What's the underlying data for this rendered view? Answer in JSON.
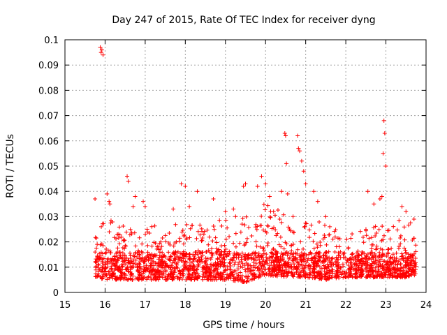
{
  "chart_data": {
    "type": "scatter",
    "title": "Day 247 of 2015, Rate Of TEC Index for receiver dyng",
    "xlabel": "GPS time / hours",
    "ylabel": "ROTI / TECUs",
    "xlim": [
      15,
      24
    ],
    "ylim": [
      0,
      0.1
    ],
    "xticks": [
      15,
      16,
      17,
      18,
      19,
      20,
      21,
      22,
      23,
      24
    ],
    "xtick_labels": [
      "15",
      "16",
      "17",
      "18",
      "19",
      "20",
      "21",
      "22",
      "23",
      "24"
    ],
    "yticks": [
      0,
      0.01,
      0.02,
      0.03,
      0.04,
      0.05,
      0.06,
      0.07,
      0.08,
      0.09,
      0.1
    ],
    "ytick_labels": [
      "0",
      "0.01",
      "0.02",
      "0.03",
      "0.04",
      "0.05",
      "0.06",
      "0.07",
      "0.08",
      "0.09",
      "0.1"
    ],
    "grid": true,
    "marker": "plus",
    "color": "#ff0000",
    "series": [
      {
        "name": "ROTI",
        "x": [
          15.75,
          15.88,
          15.9,
          15.92,
          15.95,
          16.05,
          16.1,
          16.12,
          16.55,
          16.58,
          16.7,
          16.75,
          16.95,
          17.0,
          17.7,
          17.9,
          18.0,
          18.1,
          18.3,
          18.7,
          19.0,
          19.2,
          19.45,
          19.5,
          19.8,
          19.9,
          20.0,
          20.1,
          20.2,
          20.4,
          20.48,
          20.5,
          20.52,
          20.55,
          20.8,
          20.82,
          20.85,
          20.9,
          20.95,
          21.0,
          21.2,
          21.3,
          21.5,
          21.6,
          22.55,
          22.7,
          22.85,
          22.9,
          22.93,
          22.95,
          22.97,
          23.0,
          23.4,
          23.5,
          23.7
        ],
        "y": [
          0.037,
          0.097,
          0.095,
          0.096,
          0.094,
          0.039,
          0.036,
          0.035,
          0.046,
          0.044,
          0.034,
          0.038,
          0.036,
          0.034,
          0.033,
          0.043,
          0.042,
          0.034,
          0.04,
          0.037,
          0.032,
          0.033,
          0.042,
          0.043,
          0.042,
          0.046,
          0.043,
          0.038,
          0.032,
          0.04,
          0.063,
          0.062,
          0.051,
          0.039,
          0.062,
          0.057,
          0.056,
          0.052,
          0.048,
          0.043,
          0.04,
          0.036,
          0.03,
          0.026,
          0.04,
          0.035,
          0.037,
          0.038,
          0.055,
          0.068,
          0.063,
          0.05,
          0.034,
          0.032,
          0.029
        ]
      }
    ],
    "dense_band": {
      "x_range": [
        15.75,
        23.75
      ],
      "envelope": [
        {
          "x": 15.75,
          "low": 0.006,
          "high": 0.022
        },
        {
          "x": 16.0,
          "low": 0.005,
          "high": 0.03
        },
        {
          "x": 16.5,
          "low": 0.005,
          "high": 0.026
        },
        {
          "x": 17.0,
          "low": 0.005,
          "high": 0.028
        },
        {
          "x": 17.5,
          "low": 0.005,
          "high": 0.026
        },
        {
          "x": 18.0,
          "low": 0.005,
          "high": 0.028
        },
        {
          "x": 18.5,
          "low": 0.005,
          "high": 0.028
        },
        {
          "x": 19.0,
          "low": 0.005,
          "high": 0.029
        },
        {
          "x": 19.5,
          "low": 0.004,
          "high": 0.033
        },
        {
          "x": 20.0,
          "low": 0.007,
          "high": 0.035
        },
        {
          "x": 20.5,
          "low": 0.006,
          "high": 0.033
        },
        {
          "x": 21.0,
          "low": 0.006,
          "high": 0.03
        },
        {
          "x": 21.5,
          "low": 0.005,
          "high": 0.028
        },
        {
          "x": 22.0,
          "low": 0.006,
          "high": 0.022
        },
        {
          "x": 22.5,
          "low": 0.006,
          "high": 0.026
        },
        {
          "x": 23.0,
          "low": 0.006,
          "high": 0.028
        },
        {
          "x": 23.5,
          "low": 0.006,
          "high": 0.03
        },
        {
          "x": 23.75,
          "low": 0.007,
          "high": 0.028
        }
      ],
      "typical": 0.013,
      "point_count": 2200
    }
  }
}
